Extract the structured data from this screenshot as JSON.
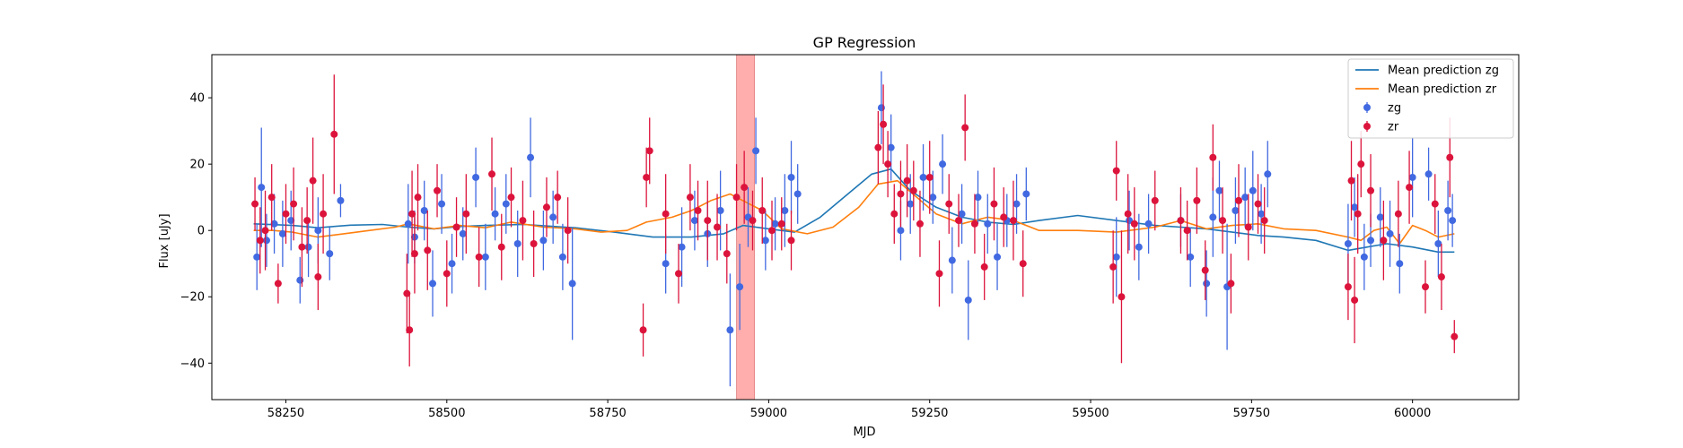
{
  "chart_data": {
    "type": "scatter",
    "title": "GP Regression",
    "xlabel": "MJD",
    "ylabel": "Flux [uJy]",
    "xlim": [
      58135,
      60165
    ],
    "ylim": [
      -51,
      53
    ],
    "xticks": [
      58250,
      58500,
      58750,
      59000,
      59250,
      59500,
      59750,
      60000
    ],
    "yticks": [
      -40,
      -20,
      0,
      20,
      40
    ],
    "grid": false,
    "legend_position": "top-right",
    "highlight_band": {
      "x0": 58950,
      "x1": 58978,
      "color": "#ff9999"
    },
    "legend": [
      "Mean prediction zg",
      "Mean prediction zr",
      "zg",
      "zr"
    ],
    "series": [
      {
        "name": "Mean prediction zg",
        "kind": "line",
        "color": "#1f77b4",
        "x": [
          58200,
          58260,
          58300,
          58350,
          58400,
          58440,
          58480,
          58520,
          58560,
          58620,
          58700,
          58760,
          58820,
          58880,
          58930,
          58960,
          59000,
          59040,
          59080,
          59120,
          59160,
          59190,
          59220,
          59260,
          59300,
          59340,
          59380,
          59420,
          59480,
          59540,
          59600,
          59640,
          59680,
          59720,
          59760,
          59800,
          59850,
          59900,
          59930,
          59960,
          60000,
          60040,
          60065
        ],
        "y": [
          2.0,
          1.5,
          0.8,
          1.6,
          1.8,
          1.0,
          0.5,
          1.2,
          1.5,
          1.8,
          0.8,
          -0.5,
          -2.0,
          -2.0,
          -1.0,
          1.5,
          0.5,
          -0.5,
          4.0,
          10.5,
          17.0,
          18.5,
          12.0,
          7.0,
          4.0,
          2.5,
          1.8,
          3.0,
          4.5,
          3.0,
          1.5,
          1.0,
          0.5,
          -0.5,
          -1.5,
          -2.0,
          -3.0,
          -6.0,
          -5.0,
          -4.0,
          -5.0,
          -6.5,
          -6.5
        ]
      },
      {
        "name": "Mean prediction zr",
        "kind": "line",
        "color": "#ff7f0e",
        "x": [
          58200,
          58230,
          58260,
          58300,
          58340,
          58380,
          58420,
          58440,
          58480,
          58520,
          58560,
          58600,
          58650,
          58700,
          58740,
          58780,
          58810,
          58850,
          58880,
          58910,
          58940,
          58960,
          58990,
          59020,
          59060,
          59100,
          59140,
          59170,
          59200,
          59230,
          59260,
          59300,
          59340,
          59380,
          59420,
          59480,
          59540,
          59600,
          59640,
          59680,
          59720,
          59760,
          59800,
          59850,
          59900,
          59920,
          59940,
          59960,
          59980,
          60000,
          60020,
          60040,
          60065
        ],
        "y": [
          0.0,
          0.0,
          -0.5,
          -2.0,
          -1.0,
          0.0,
          1.0,
          2.0,
          0.5,
          1.5,
          0.8,
          2.5,
          1.0,
          0.5,
          -0.5,
          0.0,
          2.5,
          4.0,
          6.0,
          9.0,
          11.0,
          9.0,
          6.0,
          0.5,
          -1.0,
          1.0,
          7.0,
          14.0,
          15.0,
          10.0,
          5.0,
          2.0,
          4.0,
          3.0,
          0.0,
          0.0,
          -0.5,
          1.0,
          3.0,
          0.5,
          1.5,
          2.0,
          0.5,
          0.0,
          -2.0,
          -3.0,
          0.0,
          1.0,
          -4.0,
          1.5,
          0.0,
          -2.0,
          -1.0
        ]
      },
      {
        "name": "zg",
        "kind": "errorbar",
        "color": "#4169e1",
        "x": [
          58205,
          58212,
          58220,
          58232,
          58245,
          58258,
          58272,
          58285,
          58300,
          58318,
          58335,
          58440,
          58450,
          58465,
          58478,
          58492,
          58508,
          58525,
          58545,
          58560,
          58575,
          58592,
          58610,
          58630,
          58650,
          58665,
          58680,
          58695,
          58840,
          58865,
          58885,
          58905,
          58925,
          58940,
          58955,
          58968,
          58980,
          58995,
          59010,
          59025,
          59035,
          59045,
          59175,
          59190,
          59205,
          59220,
          59240,
          59255,
          59270,
          59285,
          59300,
          59310,
          59325,
          59340,
          59355,
          59370,
          59385,
          59400,
          59540,
          59560,
          59575,
          59590,
          59640,
          59655,
          59680,
          59690,
          59700,
          59712,
          59725,
          59740,
          59752,
          59765,
          59775,
          59900,
          59910,
          59925,
          59935,
          59950,
          59965,
          59980,
          60000,
          60025,
          60040,
          60055,
          60062
        ],
        "y": [
          -8,
          13,
          -3,
          2,
          -1,
          3,
          -15,
          -5,
          0,
          -7,
          9,
          2,
          -2,
          6,
          -16,
          8,
          -10,
          -1,
          16,
          -8,
          5,
          8,
          -4,
          22,
          -3,
          4,
          -8,
          -16,
          -10,
          -5,
          3,
          -1,
          6,
          -30,
          -17,
          4,
          24,
          -3,
          2,
          6,
          16,
          11,
          37,
          25,
          0,
          8,
          16,
          10,
          20,
          -9,
          5,
          -21,
          10,
          2,
          -8,
          3,
          8,
          11,
          -8,
          3,
          -5,
          2,
          3,
          -8,
          -16,
          4,
          12,
          -17,
          6,
          10,
          12,
          5,
          17,
          -4,
          7,
          -8,
          -3,
          4,
          -1,
          -10,
          16,
          17,
          -4,
          6,
          3
        ],
        "err": [
          10,
          18,
          8,
          9,
          10,
          9,
          7,
          9,
          10,
          8,
          5,
          12,
          8,
          9,
          10,
          9,
          9,
          8,
          9,
          10,
          8,
          9,
          10,
          12,
          9,
          8,
          10,
          17,
          9,
          12,
          9,
          10,
          12,
          17,
          13,
          9,
          10,
          9,
          8,
          11,
          11,
          9,
          11,
          10,
          9,
          9,
          10,
          8,
          9,
          10,
          9,
          12,
          8,
          9,
          10,
          8,
          9,
          8,
          12,
          9,
          10,
          9,
          8,
          9,
          10,
          12,
          9,
          19,
          10,
          9,
          12,
          9,
          10,
          12,
          9,
          10,
          8,
          9,
          10,
          9,
          12,
          8,
          10,
          9,
          8
        ]
      },
      {
        "name": "zr",
        "kind": "errorbar",
        "color": "#dc143c",
        "x": [
          58202,
          58210,
          58218,
          58228,
          58238,
          58250,
          58262,
          58275,
          58283,
          58292,
          58300,
          58308,
          58325,
          58438,
          58442,
          58446,
          58450,
          58455,
          58470,
          58485,
          58500,
          58515,
          58530,
          58550,
          58570,
          58585,
          58600,
          58618,
          58635,
          58655,
          58672,
          58688,
          58805,
          58810,
          58815,
          58840,
          58860,
          58878,
          58890,
          58905,
          58920,
          58935,
          58950,
          58962,
          58975,
          58990,
          59005,
          59020,
          59035,
          59170,
          59178,
          59185,
          59195,
          59205,
          59215,
          59225,
          59235,
          59250,
          59265,
          59280,
          59295,
          59305,
          59320,
          59335,
          59350,
          59365,
          59380,
          59395,
          59535,
          59540,
          59548,
          59558,
          59568,
          59600,
          59640,
          59650,
          59665,
          59678,
          59690,
          59705,
          59718,
          59730,
          59745,
          59760,
          59770,
          59900,
          59905,
          59910,
          59915,
          59920,
          59935,
          59955,
          59978,
          59995,
          60020,
          60035,
          60045,
          60058,
          60065
        ],
        "y": [
          8,
          -3,
          0,
          10,
          -16,
          5,
          8,
          -5,
          3,
          15,
          -14,
          5,
          29,
          -19,
          -30,
          5,
          -7,
          10,
          -6,
          12,
          -13,
          1,
          5,
          -8,
          17,
          -5,
          10,
          3,
          -4,
          7,
          10,
          0,
          -30,
          16,
          24,
          5,
          -13,
          10,
          6,
          3,
          1,
          -7,
          10,
          13,
          3,
          6,
          0,
          2,
          -3,
          25,
          32,
          20,
          5,
          11,
          15,
          12,
          2,
          16,
          -13,
          8,
          3,
          31,
          2,
          -11,
          8,
          4,
          3,
          -10,
          -11,
          18,
          -20,
          5,
          2,
          9,
          3,
          0,
          9,
          -12,
          22,
          3,
          -16,
          9,
          1,
          8,
          3,
          -17,
          15,
          -21,
          5,
          20,
          12,
          -3,
          5,
          13,
          -17,
          8,
          -14,
          22,
          -32
        ],
        "err": [
          8,
          10,
          12,
          10,
          6,
          9,
          11,
          12,
          10,
          13,
          10,
          12,
          18,
          12,
          11,
          13,
          12,
          10,
          12,
          8,
          10,
          9,
          12,
          9,
          11,
          10,
          9,
          12,
          10,
          9,
          8,
          10,
          8,
          9,
          10,
          12,
          9,
          10,
          9,
          12,
          10,
          9,
          10,
          11,
          9,
          10,
          9,
          8,
          9,
          11,
          12,
          10,
          9,
          10,
          11,
          9,
          10,
          11,
          10,
          9,
          8,
          10,
          9,
          10,
          11,
          9,
          12,
          10,
          11,
          9,
          20,
          12,
          11,
          9,
          10,
          9,
          10,
          9,
          10,
          10,
          9,
          11,
          10,
          9,
          10,
          10,
          12,
          13,
          12,
          10,
          11,
          12,
          10,
          11,
          8,
          9,
          10,
          12,
          5
        ]
      }
    ]
  }
}
